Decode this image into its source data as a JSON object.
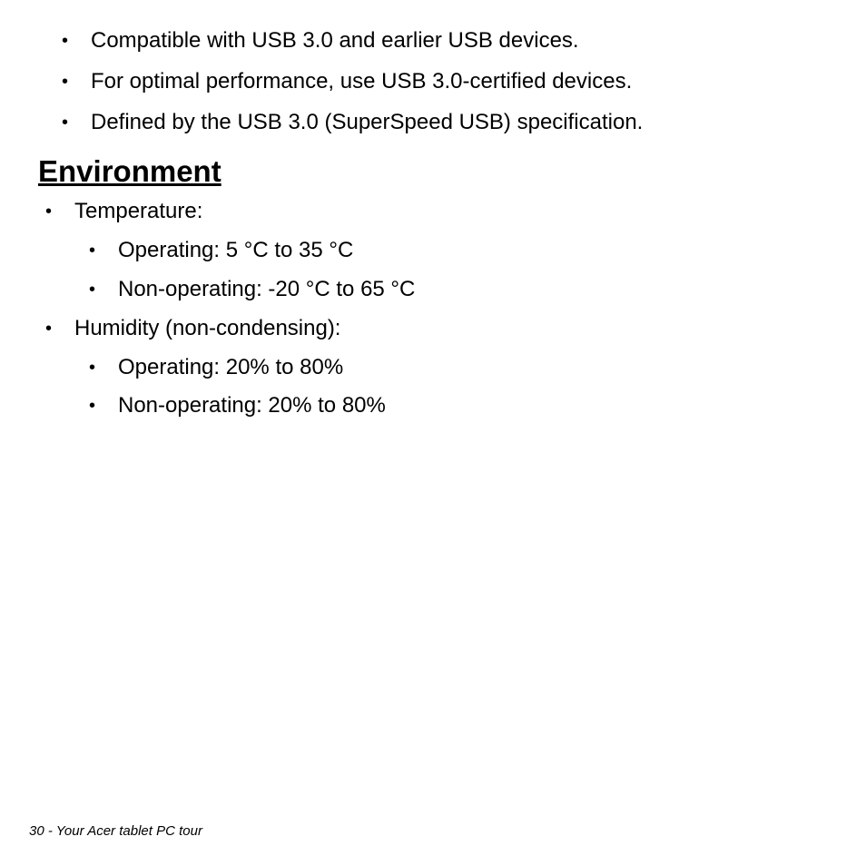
{
  "top_bullets": [
    "Compatible with USB 3.0 and earlier USB devices.",
    "For optimal performance, use USB 3.0-certified devices.",
    "Defined by the USB 3.0 (SuperSpeed USB) specification."
  ],
  "heading": "Environment",
  "environment": {
    "temperature": {
      "label": "Temperature:",
      "operating": "Operating: 5 °C to 35 °C",
      "non_operating": "Non-operating: -20 °C to 65 °C"
    },
    "humidity": {
      "label": "Humidity (non-condensing):",
      "operating": "Operating: 20% to 80%",
      "non_operating": "Non-operating: 20% to 80%"
    }
  },
  "footer": "30 - Your Acer tablet PC tour",
  "bullet_char": "•"
}
